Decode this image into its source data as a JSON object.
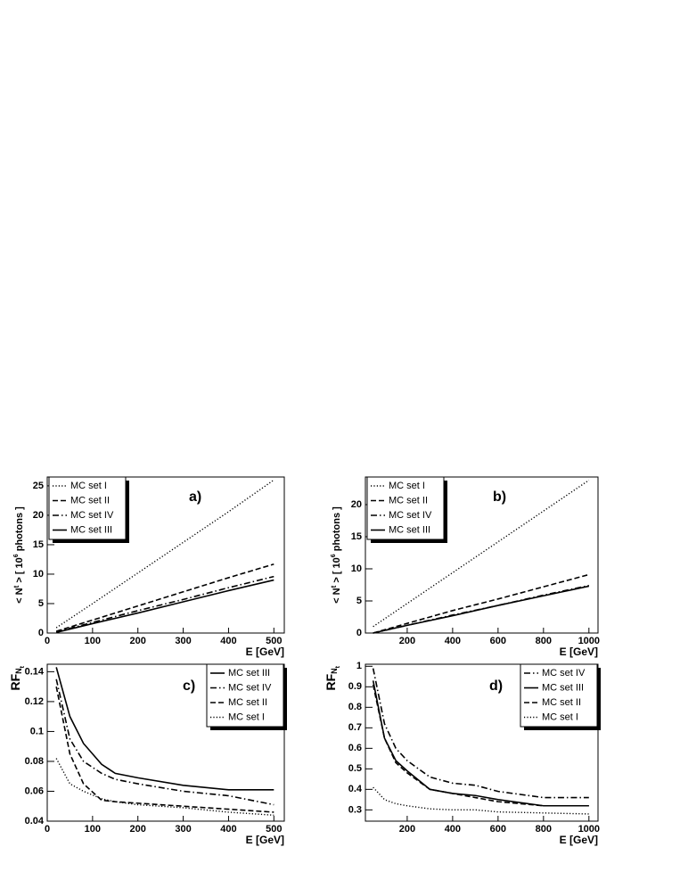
{
  "chart_data": [
    {
      "type": "line",
      "panel_label": "a)",
      "xlabel": "E [GeV]",
      "ylabel": [
        "< N",
        "t",
        " >  [ 10",
        "6",
        " photons ]"
      ],
      "xlim": [
        0,
        523
      ],
      "ylim": [
        0,
        26.5
      ],
      "xticks": [
        0,
        100,
        200,
        300,
        400,
        500
      ],
      "yticks": [
        0,
        5,
        10,
        15,
        20,
        25
      ],
      "legend": "top-left",
      "x": [
        20,
        100,
        200,
        300,
        400,
        500
      ],
      "series": [
        {
          "name": "MC set I",
          "color": "#000000",
          "dash": "dotted",
          "values": [
            0.9,
            5.0,
            10.2,
            15.4,
            20.6,
            26.0
          ]
        },
        {
          "name": "MC set II",
          "color": "#000000",
          "dash": "dashed",
          "values": [
            0.3,
            2.2,
            4.6,
            7.0,
            9.4,
            11.7
          ]
        },
        {
          "name": "MC set IV",
          "color": "#000000",
          "dash": "dashdot",
          "values": [
            0.2,
            1.8,
            3.8,
            5.7,
            7.7,
            9.6
          ]
        },
        {
          "name": "MC set III",
          "color": "#000000",
          "dash": "solid",
          "values": [
            0.1,
            1.6,
            3.4,
            5.3,
            7.2,
            9.0
          ]
        }
      ]
    },
    {
      "type": "line",
      "panel_label": "b)",
      "xlabel": "E [GeV]",
      "ylabel": [
        "< N",
        "t",
        " >  [ 10",
        "6",
        " photons ]"
      ],
      "xlim": [
        16,
        1040
      ],
      "ylim": [
        0,
        24.3
      ],
      "xticks": [
        200,
        400,
        600,
        800,
        1000
      ],
      "yticks": [
        0,
        5,
        10,
        15,
        20
      ],
      "legend": "top-left",
      "x": [
        50,
        200,
        400,
        600,
        800,
        1000
      ],
      "series": [
        {
          "name": "MC set I",
          "color": "#000000",
          "dash": "dotted",
          "values": [
            1.0,
            4.6,
            9.4,
            14.2,
            19.0,
            23.8
          ]
        },
        {
          "name": "MC set II",
          "color": "#000000",
          "dash": "dashed",
          "values": [
            0,
            1.5,
            3.5,
            5.3,
            7.2,
            9.1
          ]
        },
        {
          "name": "MC set IV",
          "color": "#000000",
          "dash": "dashdot",
          "values": [
            0,
            1.2,
            2.8,
            4.3,
            5.9,
            7.4
          ]
        },
        {
          "name": "MC set III",
          "color": "#000000",
          "dash": "solid",
          "values": [
            0,
            1.2,
            2.7,
            4.3,
            5.8,
            7.3
          ]
        }
      ]
    },
    {
      "type": "line",
      "panel_label": "c)",
      "xlabel": "E [GeV]",
      "ylabel": [
        "RF",
        "N",
        "t"
      ],
      "xlim": [
        0,
        523
      ],
      "ylim": [
        0.04,
        0.145
      ],
      "xticks": [
        0,
        100,
        200,
        300,
        400,
        500
      ],
      "yticks": [
        0.04,
        0.06,
        0.08,
        0.1,
        0.12,
        0.14
      ],
      "legend": "top-right",
      "x": [
        20,
        50,
        80,
        120,
        150,
        200,
        300,
        400,
        500
      ],
      "series": [
        {
          "name": "MC set III",
          "color": "#000000",
          "dash": "solid",
          "values": [
            0.143,
            0.11,
            0.092,
            0.078,
            0.072,
            0.069,
            0.064,
            0.061,
            0.061
          ]
        },
        {
          "name": "MC set IV",
          "color": "#000000",
          "dash": "dashdot",
          "values": [
            0.135,
            0.095,
            0.08,
            0.072,
            0.068,
            0.065,
            0.06,
            0.057,
            0.051
          ]
        },
        {
          "name": "MC set II",
          "color": "#000000",
          "dash": "dashed",
          "values": [
            0.13,
            0.085,
            0.065,
            0.054,
            0.053,
            0.052,
            0.05,
            0.048,
            0.046
          ]
        },
        {
          "name": "MC set I",
          "color": "#000000",
          "dash": "dotted",
          "values": [
            0.082,
            0.065,
            0.06,
            0.055,
            0.053,
            0.051,
            0.049,
            0.046,
            0.044
          ]
        }
      ]
    },
    {
      "type": "line",
      "panel_label": "d)",
      "xlabel": "E [GeV]",
      "ylabel": [
        "RF",
        "N",
        "t"
      ],
      "xlim": [
        16,
        1040
      ],
      "ylim": [
        0.245,
        1.01
      ],
      "xticks": [
        200,
        400,
        600,
        800,
        1000
      ],
      "yticks": [
        0.3,
        0.4,
        0.5,
        0.6,
        0.7,
        0.8,
        0.9,
        1
      ],
      "legend": "top-right",
      "x": [
        50,
        100,
        150,
        200,
        300,
        400,
        500,
        600,
        800,
        1000
      ],
      "series": [
        {
          "name": "MC set IV",
          "color": "#000000",
          "dash": "dashdot",
          "values": [
            0.99,
            0.72,
            0.6,
            0.54,
            0.46,
            0.43,
            0.42,
            0.39,
            0.36,
            0.36
          ]
        },
        {
          "name": "MC set III",
          "color": "#000000",
          "dash": "solid",
          "values": [
            0.93,
            0.65,
            0.54,
            0.49,
            0.4,
            0.38,
            0.37,
            0.35,
            0.32,
            0.32
          ]
        },
        {
          "name": "MC set II",
          "color": "#000000",
          "dash": "dashed",
          "values": [
            0.91,
            0.65,
            0.53,
            0.48,
            0.4,
            0.38,
            0.36,
            0.34,
            0.32,
            0.32
          ]
        },
        {
          "name": "MC set I",
          "color": "#000000",
          "dash": "dotted",
          "values": [
            0.41,
            0.35,
            0.33,
            0.32,
            0.305,
            0.3,
            0.3,
            0.29,
            0.285,
            0.28
          ]
        }
      ]
    }
  ]
}
